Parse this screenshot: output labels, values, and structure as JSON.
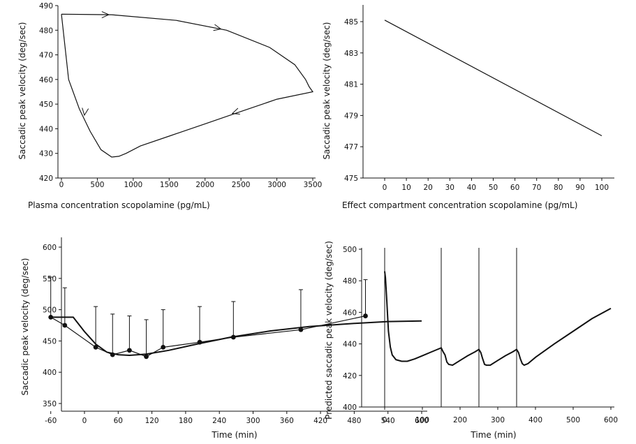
{
  "chart_data": [
    {
      "type": "line",
      "xlabel": "Plasma concentration scopolamine (pg/mL)",
      "ylabel": "Saccadic peak velocity (deg/sec)",
      "xlim": [
        0,
        3500
      ],
      "ylim": [
        420,
        490
      ],
      "xticks": [
        "0",
        "500",
        "1000",
        "1500",
        "2000",
        "2500",
        "3000",
        "3500"
      ],
      "yticks": [
        "420",
        "430",
        "440",
        "450",
        "460",
        "470",
        "480",
        "490"
      ],
      "series": [
        {
          "x": [
            0,
            700,
            1600,
            2300,
            2900,
            3250,
            3400,
            3450,
            3500,
            3000,
            2500,
            2000,
            1500,
            1100,
            900,
            800,
            700,
            550,
            400,
            250,
            100,
            0
          ],
          "y": [
            486.5,
            486.3,
            484,
            480,
            473,
            466,
            460,
            457,
            455,
            452,
            447,
            442,
            437,
            433,
            430,
            428.8,
            428.5,
            431.5,
            439,
            448,
            460,
            486.5
          ]
        }
      ]
    },
    {
      "type": "line",
      "xlabel": "Effect compartment concentration scopolamine (pg/mL)",
      "ylabel": "Saccadic peak velocity (deg/sec)",
      "xlim": [
        -10,
        115
      ],
      "ylim": [
        475,
        486
      ],
      "xticks": [
        "0",
        "10",
        "20",
        "30",
        "40",
        "50",
        "60",
        "70",
        "80",
        "90",
        "100"
      ],
      "yticks": [
        "475",
        "477",
        "479",
        "481",
        "483",
        "485"
      ],
      "series": [
        {
          "x": [
            0,
            100
          ],
          "y": [
            485.1,
            477.7
          ]
        }
      ]
    },
    {
      "type": "line",
      "xlabel": "Time (min)",
      "ylabel": "Saccadic peak velocity (deg/sec)",
      "xlim": [
        -90,
        620
      ],
      "ylim": [
        335,
        610
      ],
      "xticks": [
        "-60",
        "0",
        "60",
        "120",
        "180",
        "240",
        "300",
        "360",
        "420",
        "480",
        "540",
        "600"
      ],
      "yticks": [
        "350",
        "400",
        "450",
        "500",
        "550",
        "600"
      ],
      "observed": {
        "x": [
          -60,
          -35,
          20,
          50,
          80,
          110,
          140,
          205,
          265,
          385,
          500
        ],
        "y": [
          488,
          475,
          440,
          428,
          435,
          425,
          440,
          448,
          456,
          468,
          490
        ],
        "err_upper": [
          552,
          535,
          505,
          493,
          490,
          484,
          500,
          505,
          513,
          532,
          548
        ]
      },
      "series": [
        {
          "x": [
            -60,
            -20,
            0,
            20,
            40,
            60,
            80,
            110,
            150,
            200,
            260,
            330,
            400,
            480,
            540,
            600
          ],
          "y": [
            488,
            488,
            465,
            445,
            432,
            428,
            427,
            429,
            435,
            445,
            456,
            466,
            473,
            478,
            481,
            482
          ]
        }
      ]
    },
    {
      "type": "line",
      "xlabel": "Time (min)",
      "ylabel": "Predicted saccadic peak velocity (deg/sec)",
      "xlim": [
        -30,
        600
      ],
      "ylim": [
        400,
        500
      ],
      "xticks": [
        "0",
        "100",
        "200",
        "300",
        "400",
        "500",
        "600"
      ],
      "yticks": [
        "400",
        "420",
        "440",
        "460",
        "480",
        "500"
      ],
      "vlines": [
        0,
        150,
        250,
        350
      ],
      "series": [
        {
          "x": [
            0,
            2,
            5,
            10,
            15,
            20,
            30,
            45,
            60,
            80,
            100,
            120,
            140,
            150,
            155,
            160,
            165,
            170,
            180,
            200,
            220,
            240,
            250,
            255,
            260,
            265,
            270,
            280,
            300,
            320,
            340,
            350,
            355,
            360,
            365,
            370,
            380,
            400,
            450,
            500,
            550,
            600
          ],
          "y": [
            486,
            482,
            470,
            448,
            438,
            433,
            430,
            429,
            429,
            430.5,
            432.5,
            434.5,
            436.5,
            437.5,
            435,
            433,
            428.5,
            427,
            426.5,
            429.5,
            432.5,
            435,
            436.5,
            434.5,
            430.5,
            427,
            426.5,
            426.5,
            429.5,
            432.5,
            435,
            436.5,
            434.5,
            430.5,
            427.5,
            426.5,
            427.5,
            431.5,
            440,
            448,
            456,
            462.5
          ]
        }
      ]
    }
  ]
}
